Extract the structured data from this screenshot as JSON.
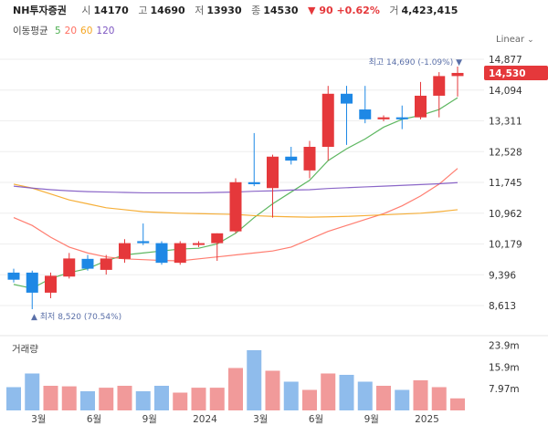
{
  "header": {
    "stock_name": "NH투자증권",
    "open_label": "시",
    "open": "14170",
    "high_label": "고",
    "high": "14690",
    "low_label": "저",
    "low": "13930",
    "close_label": "종",
    "close": "14530",
    "change": "▼ 90 +0.62%",
    "volume_label": "거",
    "volume": "4,423,415"
  },
  "moving_average": {
    "label": "이동평균",
    "periods": [
      "5",
      "20",
      "60",
      "120"
    ],
    "colors": [
      "#4caf50",
      "#ff6f61",
      "#f5a623",
      "#7e57c2"
    ]
  },
  "scale_toggle": "Linear",
  "chart_data": {
    "type": "candlestick",
    "title": "NH투자증권",
    "y_ticks": [
      "14,877",
      "14,094",
      "13,311",
      "12,528",
      "11,745",
      "10,962",
      "10,179",
      "9,396",
      "8,613"
    ],
    "y_tick_values": [
      14877,
      14094,
      13311,
      12528,
      11745,
      10962,
      10179,
      9396,
      8613
    ],
    "ylim": [
      8613,
      14877
    ],
    "current_price_label": "14,530",
    "current_price": 14530,
    "high_annotation": "최고 14,690 (-1.09%) ▼",
    "low_annotation": "▲ 최저 8,520 (70.54%)",
    "x_labels": [
      "3월",
      "6월",
      "9월",
      "2024",
      "3월",
      "6월",
      "9월",
      "2025"
    ],
    "x_label_candle_index": [
      1,
      4,
      7,
      10,
      13,
      16,
      19,
      22
    ],
    "candles": [
      {
        "o": 9450,
        "h": 9550,
        "l": 9200,
        "c": 9270
      },
      {
        "o": 9450,
        "h": 9500,
        "l": 8520,
        "c": 8940
      },
      {
        "o": 8940,
        "h": 9450,
        "l": 8800,
        "c": 9370
      },
      {
        "o": 9350,
        "h": 9950,
        "l": 9300,
        "c": 9810
      },
      {
        "o": 9800,
        "h": 9900,
        "l": 9500,
        "c": 9550
      },
      {
        "o": 9520,
        "h": 9900,
        "l": 9400,
        "c": 9810
      },
      {
        "o": 9800,
        "h": 10300,
        "l": 9700,
        "c": 10200
      },
      {
        "o": 10250,
        "h": 10700,
        "l": 10150,
        "c": 10200
      },
      {
        "o": 10200,
        "h": 10250,
        "l": 9650,
        "c": 9700
      },
      {
        "o": 9700,
        "h": 10250,
        "l": 9650,
        "c": 10200
      },
      {
        "o": 10200,
        "h": 10250,
        "l": 10100,
        "c": 10200
      },
      {
        "o": 10200,
        "h": 10450,
        "l": 9750,
        "c": 10450
      },
      {
        "o": 10500,
        "h": 11850,
        "l": 10450,
        "c": 11750
      },
      {
        "o": 11750,
        "h": 13000,
        "l": 11650,
        "c": 11700
      },
      {
        "o": 11600,
        "h": 12450,
        "l": 10850,
        "c": 12400
      },
      {
        "o": 12400,
        "h": 12650,
        "l": 12200,
        "c": 12300
      },
      {
        "o": 12050,
        "h": 12800,
        "l": 11850,
        "c": 12650
      },
      {
        "o": 12650,
        "h": 14200,
        "l": 12300,
        "c": 14000
      },
      {
        "o": 14000,
        "h": 14200,
        "l": 12700,
        "c": 13750
      },
      {
        "o": 13600,
        "h": 14200,
        "l": 13250,
        "c": 13350
      },
      {
        "o": 13350,
        "h": 13450,
        "l": 13300,
        "c": 13400
      },
      {
        "o": 13400,
        "h": 13700,
        "l": 13100,
        "c": 13350
      },
      {
        "o": 13400,
        "h": 14300,
        "l": 13350,
        "c": 13950
      },
      {
        "o": 13950,
        "h": 14550,
        "l": 13400,
        "c": 14450
      },
      {
        "o": 14450,
        "h": 14690,
        "l": 13930,
        "c": 14530
      }
    ],
    "ma_series": [
      {
        "name": "5",
        "color": "#4caf50",
        "values": [
          9150,
          9050,
          9300,
          9450,
          9550,
          9750,
          9900,
          9950,
          10000,
          10050,
          10070,
          10180,
          10450,
          10850,
          11200,
          11500,
          11800,
          12300,
          12600,
          12850,
          13150,
          13350,
          13450,
          13600,
          13900
        ]
      },
      {
        "name": "20",
        "color": "#ff6f61",
        "values": [
          10850,
          10650,
          10350,
          10100,
          9950,
          9850,
          9800,
          9780,
          9760,
          9750,
          9800,
          9850,
          9900,
          9950,
          10000,
          10100,
          10300,
          10500,
          10650,
          10800,
          10950,
          11150,
          11400,
          11700,
          12100
        ]
      },
      {
        "name": "60",
        "color": "#f5a623",
        "values": [
          11700,
          11600,
          11450,
          11300,
          11200,
          11100,
          11050,
          11000,
          10980,
          10960,
          10950,
          10940,
          10930,
          10900,
          10880,
          10870,
          10860,
          10870,
          10880,
          10900,
          10920,
          10940,
          10960,
          11000,
          11050
        ]
      },
      {
        "name": "120",
        "color": "#7e57c2",
        "values": [
          11650,
          11600,
          11560,
          11530,
          11510,
          11500,
          11490,
          11480,
          11480,
          11480,
          11480,
          11490,
          11500,
          11520,
          11530,
          11550,
          11560,
          11590,
          11610,
          11630,
          11650,
          11670,
          11690,
          11710,
          11740
        ]
      }
    ],
    "volume": {
      "label": "거래량",
      "y_ticks": [
        "23.9m",
        "15.9m",
        "7.97m"
      ],
      "y_tick_values": [
        23.9,
        15.9,
        7.97
      ],
      "ymax": 26,
      "values": [
        8.5,
        13.5,
        9.0,
        8.8,
        7.0,
        8.3,
        9.0,
        7.0,
        9.0,
        6.5,
        8.3,
        8.3,
        15.5,
        22.0,
        14.5,
        10.5,
        7.5,
        13.5,
        13.0,
        10.5,
        9.0,
        7.5,
        11.0,
        8.5,
        4.4
      ]
    }
  }
}
